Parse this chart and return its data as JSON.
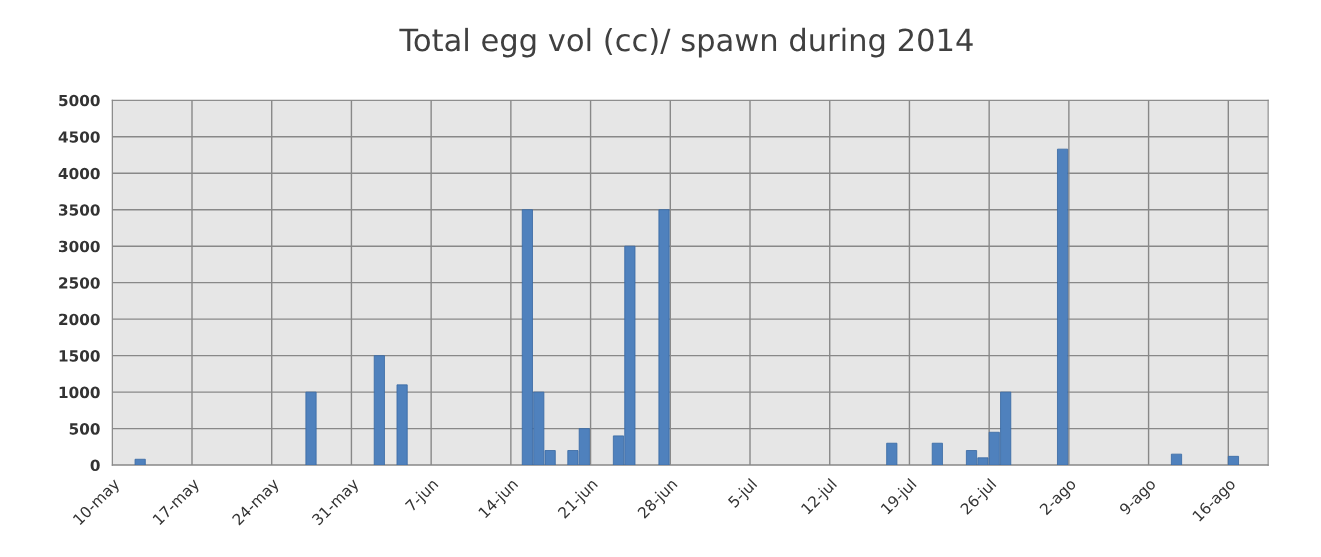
{
  "chart_data": {
    "type": "bar",
    "title": "Total egg vol (cc)/ spawn during 2014",
    "x": [
      "2014-05-12",
      "2014-05-27",
      "2014-06-02",
      "2014-06-04",
      "2014-06-15",
      "2014-06-16",
      "2014-06-17",
      "2014-06-19",
      "2014-06-20",
      "2014-06-23",
      "2014-06-24",
      "2014-06-27",
      "2014-07-17",
      "2014-07-21",
      "2014-07-24",
      "2014-07-25",
      "2014-07-26",
      "2014-07-27",
      "2014-08-01",
      "2014-08-11",
      "2014-08-16"
    ],
    "values": [
      80,
      1000,
      1500,
      1100,
      3500,
      1000,
      200,
      200,
      500,
      400,
      3000,
      3500,
      300,
      300,
      200,
      100,
      450,
      1000,
      4330,
      150,
      120
    ],
    "color": "#4f81bd",
    "xlim": [
      "2014-05-10",
      "2014-08-19T12:00"
    ],
    "xticks": [
      {
        "value": "2014-05-10",
        "label": "10-may"
      },
      {
        "value": "2014-05-17",
        "label": "17-may"
      },
      {
        "value": "2014-05-24",
        "label": "24-may"
      },
      {
        "value": "2014-05-31",
        "label": "31-may"
      },
      {
        "value": "2014-06-07",
        "label": "7-jun"
      },
      {
        "value": "2014-06-14",
        "label": "14-jun"
      },
      {
        "value": "2014-06-21",
        "label": "21-jun"
      },
      {
        "value": "2014-06-28",
        "label": "28-jun"
      },
      {
        "value": "2014-07-05",
        "label": "5-jul"
      },
      {
        "value": "2014-07-12",
        "label": "12-jul"
      },
      {
        "value": "2014-07-19",
        "label": "19-jul"
      },
      {
        "value": "2014-07-26",
        "label": "26-jul"
      },
      {
        "value": "2014-08-02",
        "label": "2-ago"
      },
      {
        "value": "2014-08-09",
        "label": "9-ago"
      },
      {
        "value": "2014-08-16",
        "label": "16-ago"
      }
    ],
    "ylim": [
      0,
      5000
    ],
    "yticks": [
      0,
      500,
      1000,
      1500,
      2000,
      2500,
      3000,
      3500,
      4000,
      4500,
      5000
    ],
    "grid": true
  }
}
